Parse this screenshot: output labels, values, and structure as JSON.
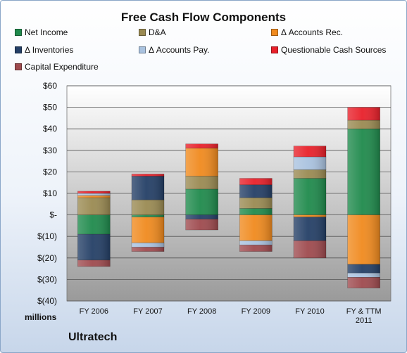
{
  "chart_data": {
    "type": "bar",
    "stacked": true,
    "title": "Free Cash Flow Components",
    "units_label": "millions",
    "company": "Ultratech",
    "categories": [
      [
        "FY 2006"
      ],
      [
        "FY 2007"
      ],
      [
        "FY 2008"
      ],
      [
        "FY 2009"
      ],
      [
        "FY 2010"
      ],
      [
        "FY & TTM",
        "2011"
      ]
    ],
    "ylim": [
      -40,
      60
    ],
    "yticks": [
      {
        "value": 60,
        "label": "$60"
      },
      {
        "value": 50,
        "label": "$50"
      },
      {
        "value": 40,
        "label": "$40"
      },
      {
        "value": 30,
        "label": "$30"
      },
      {
        "value": 20,
        "label": "$20"
      },
      {
        "value": 10,
        "label": "$10"
      },
      {
        "value": 0,
        "label": "$-"
      },
      {
        "value": -10,
        "label": "$(10)"
      },
      {
        "value": -20,
        "label": "$(20)"
      },
      {
        "value": -30,
        "label": "$(30)"
      },
      {
        "value": -40,
        "label": "$(40)"
      }
    ],
    "grid": true,
    "legend_position": "top",
    "series": [
      {
        "name": "Net Income",
        "color": "#1f8a4c",
        "values": [
          -9,
          -1,
          12,
          3,
          17,
          40
        ]
      },
      {
        "name": "D&A",
        "color": "#9a8a52",
        "values": [
          8,
          7,
          6,
          5,
          4,
          4
        ]
      },
      {
        "name": "Δ Accounts Rec.",
        "color": "#f08a1e",
        "values": [
          1,
          -12,
          13,
          -12,
          -1,
          -23
        ]
      },
      {
        "name": "Δ Inventories",
        "color": "#243f66",
        "values": [
          -12,
          11,
          -2,
          6,
          -11,
          -4
        ]
      },
      {
        "name": "Δ Accounts Pay.",
        "color": "#a9c2df",
        "values": [
          1,
          -2,
          0,
          -2,
          6,
          -2
        ]
      },
      {
        "name": "Questionable Cash Sources",
        "color": "#e8202a",
        "values": [
          1,
          1,
          2,
          3,
          5,
          6
        ]
      },
      {
        "name": "Capital Expenditure",
        "color": "#9e4a4e",
        "values": [
          -3,
          -2,
          -5,
          -3,
          -8,
          -5
        ]
      }
    ]
  }
}
